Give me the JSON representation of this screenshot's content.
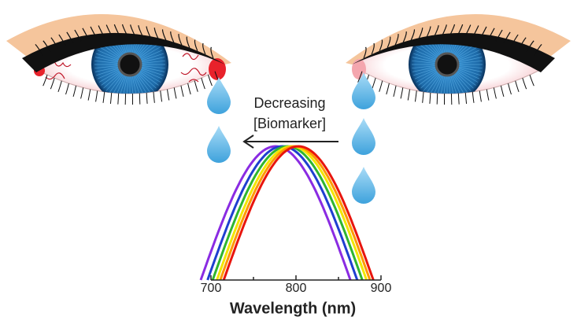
{
  "annotation": {
    "line1": "Decreasing",
    "line2": "[Biomarker]"
  },
  "spectrum": {
    "xlabel": "Wavelength (nm)",
    "xlim": [
      700,
      900
    ],
    "xticks": [
      700,
      800,
      900
    ],
    "minor_xticks": [
      750,
      850
    ],
    "curves": [
      {
        "color": "#8a2be2",
        "peak": 776
      },
      {
        "color": "#1f3fd0",
        "peak": 784
      },
      {
        "color": "#2fb52f",
        "peak": 790
      },
      {
        "color": "#f2e600",
        "peak": 795
      },
      {
        "color": "#ff9900",
        "peak": 799
      },
      {
        "color": "#e8150d",
        "peak": 803
      }
    ]
  }
}
